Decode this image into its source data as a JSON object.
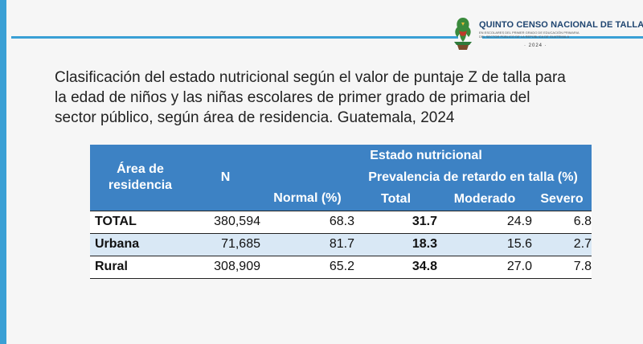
{
  "logo": {
    "title": "QUINTO CENSO NACIONAL DE TALLA",
    "subtitle_line1": "EN ESCOLARES DEL PRIMER GRADO DE EDUCACIÓN PRIMARIA",
    "subtitle_line2": "DEL SECTOR PÚBLICO DE LA REPÚBLICA DE GUATEMALA",
    "year": "· 2024 ·"
  },
  "heading": {
    "line1": "Clasificación del estado nutricional según el valor de puntaje Z de talla para",
    "line2": "la edad de niños y las niñas escolares de primer grado de primaria del",
    "line3": "sector público, según área de residencia. Guatemala, 2024"
  },
  "table": {
    "header_area": "Área de residencia",
    "header_n": "N",
    "header_estado": "Estado nutricional",
    "header_normal": "Normal (%)",
    "header_prevalencia": "Prevalencia de retardo en talla (%)",
    "header_total": "Total",
    "header_moderado": "Moderado",
    "header_severo": "Severo",
    "rows": [
      {
        "area": "TOTAL",
        "n": "380,594",
        "normal": "68.3",
        "total": "31.7",
        "moderado": "24.9",
        "severo": "6.8"
      },
      {
        "area": "Urbana",
        "n": "71,685",
        "normal": "81.7",
        "total": "18.3",
        "moderado": "15.6",
        "severo": "2.7"
      },
      {
        "area": "Rural",
        "n": "308,909",
        "normal": "65.2",
        "total": "34.8",
        "moderado": "27.0",
        "severo": "7.8"
      }
    ]
  },
  "colors": {
    "accent": "#3aa0d5",
    "header_bg": "#3d82c4",
    "stripe": "#d9e8f5"
  }
}
